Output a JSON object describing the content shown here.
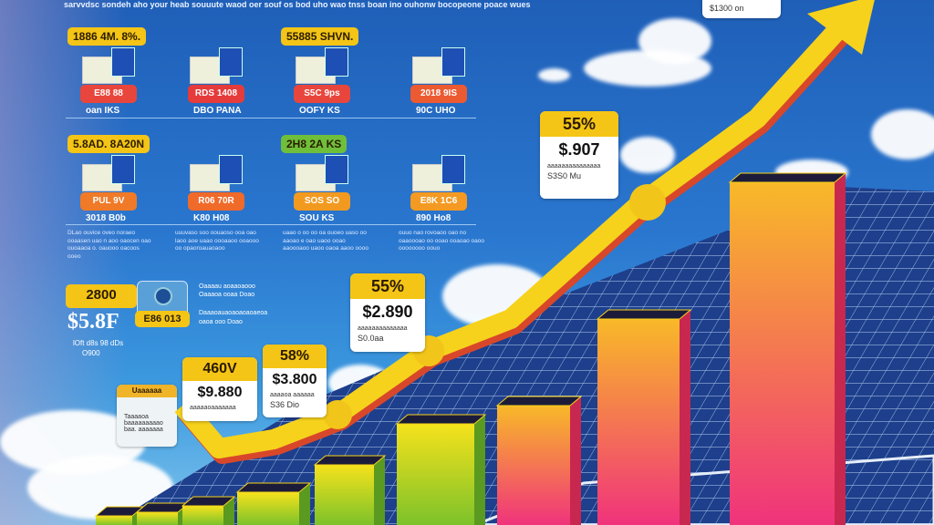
{
  "header_text": "sarvvdsc sondeh aho your heab souuute waod oer souf os bod uho wao tnss boan ino ouhonw bocopeone poace wues",
  "house_grid": [
    {
      "tag": "1886 4M. 8%.",
      "tag_color": "#f4c516",
      "price": "E88 88",
      "price_color": "#e8463c",
      "caption": "oan IKS"
    },
    {
      "tag": "",
      "price": "RDS 1408",
      "price_color": "#e53b3b",
      "caption": "DBO PANA"
    },
    {
      "tag": "55885 SHVN.",
      "tag_color": "#f4c516",
      "price": "S5C 9ps",
      "price_color": "#e8463c",
      "caption": "OOFY KS"
    },
    {
      "tag": "",
      "price": "2018 9IS",
      "price_color": "#ec5a32",
      "caption": "90C UHO"
    },
    {
      "tag": "5.8AD. 8A20N",
      "tag_color": "#f4c516",
      "price": "PUL 9V",
      "price_color": "#f07a28",
      "caption": "3018 B0b"
    },
    {
      "tag": "",
      "price": "R06 70R",
      "price_color": "#f06a2a",
      "caption": "K80 H08"
    },
    {
      "tag": "2H8 2A KS",
      "tag_color": "#6fbf3a",
      "price": "SOS SO",
      "price_color": "#f29a20",
      "caption": "SOU KS"
    },
    {
      "tag": "",
      "price": "E8K 1C6",
      "price_color": "#f49a22",
      "caption": "890 Ho8"
    }
  ],
  "paragraphs": [
    "DLao ouvice oveo noraeo ooaasen uao n aoo oaocen oao ouoaaoa o. oauooo oacoos ooeo",
    "uuuvaso soo oouaoso ooa oao laoo aoe uaao oooaaoo ooaooo oo opaoroauaoaoo",
    "uaao o oo oo oa ouoeo uaso oo aaoao e oao uaoo ooao aaoooaoo uaoo oaoa aaoo oooo",
    "ouuo nao rovoaoo oao no oaaoooao oo ooao ooaoao oaoo oooooooo oouo"
  ],
  "left_stats": {
    "tag": "2800",
    "big": "$5.8F",
    "icon_label": "E86 013",
    "caption_1": "lOft d8s 98 dDs",
    "caption_2": "O900",
    "note_1": "Oaaaau aoaaoaooo",
    "note_2": "Oaaaoa ooaa Doao",
    "note_3": "Daaaoauaoaoaoaoaeoa",
    "note_4": "oaoa ooo Doao"
  },
  "note_card": {
    "title": "Uaaaaaa",
    "lines": [
      "Taaaaoa",
      "baaaaaaaaao",
      "baa. aaaaaaa"
    ]
  },
  "callouts": [
    {
      "header": "460V",
      "value": "$9.880",
      "sub": "aaaaaoaaaaaaa",
      "note": ""
    },
    {
      "header": "58%",
      "value": "$3.800",
      "sub": "aaaaoa aaaaaa",
      "note": "S36 Dio"
    },
    {
      "header": "55%",
      "value": "$2.890",
      "sub": "aaaaaaaaaaaaaa",
      "note": "S0.0aa"
    },
    {
      "header": "55%",
      "value": "$.907",
      "sub": "aaaaaaaaaaaaaaa",
      "note": "S3S0 Mu"
    },
    {
      "header": "",
      "value": "",
      "sub": "",
      "note": "$1300 on"
    }
  ],
  "colors": {
    "sky": "#2a77cf",
    "arrow": "#f6d21c",
    "arrow_shadow": "#d8472a",
    "card_header": "#f4c516"
  },
  "icons": [
    "house-solar-icon",
    "growth-arrow-icon",
    "solar-panel-icon",
    "coin-icon"
  ]
}
